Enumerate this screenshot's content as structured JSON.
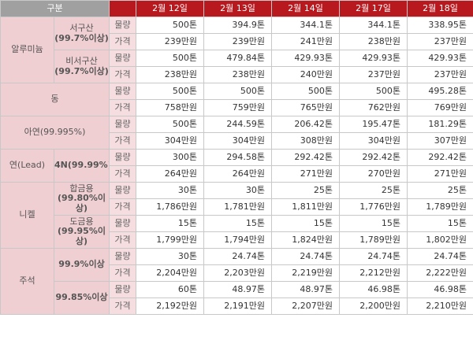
{
  "header": {
    "category": "구분",
    "dates": [
      "2월 12일",
      "2월 13일",
      "2월 14일",
      "2월 17일",
      "2월 18일"
    ]
  },
  "labels": {
    "qty": "물량",
    "price": "가격"
  },
  "groups": {
    "aluminum": {
      "name": "알루미늄",
      "west": {
        "name": "서구산",
        "purity": "(99.7%이상)",
        "qty": [
          "500톤",
          "394.9톤",
          "344.1톤",
          "344.1톤",
          "338.95톤"
        ],
        "price": [
          "239만원",
          "239만원",
          "241만원",
          "238만원",
          "237만원"
        ]
      },
      "nonwest": {
        "name": "비서구산",
        "purity": "(99.7%이상)",
        "qty": [
          "500톤",
          "479.84톤",
          "429.93톤",
          "429.93톤",
          "429.93톤"
        ],
        "price": [
          "238만원",
          "238만원",
          "240만원",
          "237만원",
          "237만원"
        ]
      }
    },
    "copper": {
      "name": "동",
      "qty": [
        "500톤",
        "500톤",
        "500톤",
        "500톤",
        "495.28톤"
      ],
      "price": [
        "758만원",
        "759만원",
        "765만원",
        "762만원",
        "769만원"
      ]
    },
    "zinc": {
      "name": "아연(99.995%)",
      "qty": [
        "500톤",
        "244.59톤",
        "206.42톤",
        "195.47톤",
        "181.29톤"
      ],
      "price": [
        "304만원",
        "304만원",
        "308만원",
        "304만원",
        "307만원"
      ]
    },
    "lead": {
      "name": "연(Lead)",
      "purity": "4N(99.99%)",
      "qty": [
        "300톤",
        "294.58톤",
        "292.42톤",
        "292.42톤",
        "292.42톤"
      ],
      "price": [
        "264만원",
        "264만원",
        "271만원",
        "270만원",
        "271만원"
      ]
    },
    "nickel": {
      "name": "니켈",
      "alloy": {
        "name": "합금용",
        "purity": "(99.80%이상)",
        "qty": [
          "30톤",
          "30톤",
          "25톤",
          "25톤",
          "25톤"
        ],
        "price": [
          "1,786만원",
          "1,781만원",
          "1,811만원",
          "1,776만원",
          "1,789만원"
        ]
      },
      "plating": {
        "name": "도금용",
        "purity": "(99.95%이상)",
        "qty": [
          "15톤",
          "15톤",
          "15톤",
          "15톤",
          "15톤"
        ],
        "price": [
          "1,799만원",
          "1,794만원",
          "1,824만원",
          "1,789만원",
          "1,802만원"
        ]
      }
    },
    "tin": {
      "name": "주석",
      "g999": {
        "name": "99.9%이상",
        "qty": [
          "30톤",
          "24.74톤",
          "24.74톤",
          "24.74톤",
          "24.74톤"
        ],
        "price": [
          "2,204만원",
          "2,203만원",
          "2,219만원",
          "2,212만원",
          "2,222만원"
        ]
      },
      "g9985": {
        "name": "99.85%이상",
        "qty": [
          "60톤",
          "48.97톤",
          "48.97톤",
          "46.98톤",
          "46.98톤"
        ],
        "price": [
          "2,192만원",
          "2,191만원",
          "2,207만원",
          "2,200만원",
          "2,210만원"
        ]
      }
    }
  }
}
